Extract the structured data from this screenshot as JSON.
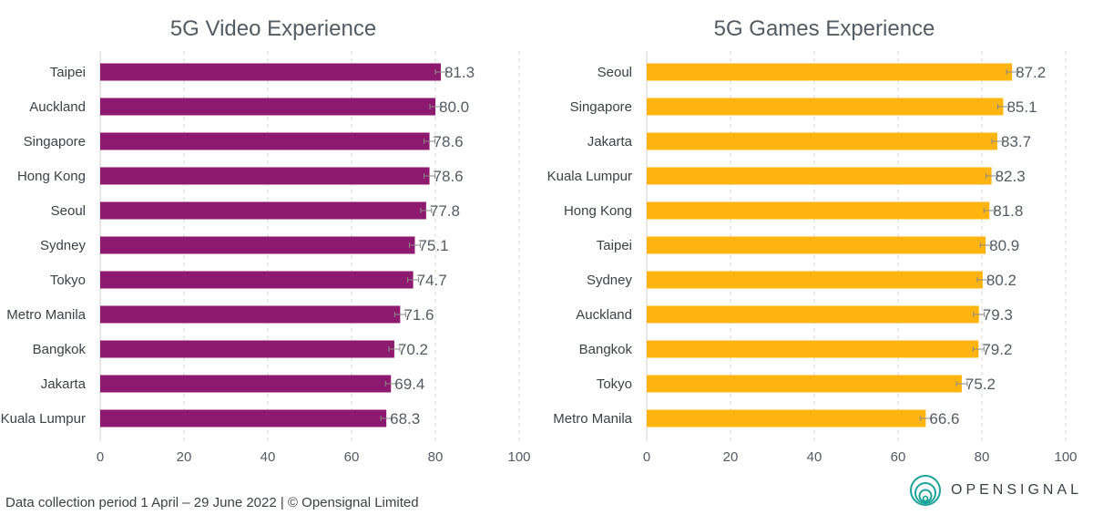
{
  "chart_data": [
    {
      "type": "bar",
      "orientation": "horizontal",
      "title": "5G Video Experience",
      "categories": [
        "Taipei",
        "Auckland",
        "Singapore",
        "Hong Kong",
        "Seoul",
        "Sydney",
        "Tokyo",
        "Metro Manila",
        "Bangkok",
        "Jakarta",
        "Kuala Lumpur"
      ],
      "values": [
        81.3,
        80.0,
        78.6,
        78.6,
        77.8,
        75.1,
        74.7,
        71.6,
        70.2,
        69.4,
        68.3
      ],
      "value_labels": [
        "81.3",
        "80.0",
        "78.6",
        "78.6",
        "77.8",
        "75.1",
        "74.7",
        "71.6",
        "70.2",
        "69.4",
        "68.3"
      ],
      "error_bars": true,
      "xlim": [
        0,
        100
      ],
      "xticks": [
        "0",
        "20",
        "40",
        "60",
        "80",
        "100"
      ],
      "grid": "vertical-dashed",
      "color": "#8e1a6f"
    },
    {
      "type": "bar",
      "orientation": "horizontal",
      "title": "5G Games Experience",
      "categories": [
        "Seoul",
        "Singapore",
        "Jakarta",
        "Kuala Lumpur",
        "Hong Kong",
        "Taipei",
        "Sydney",
        "Auckland",
        "Bangkok",
        "Tokyo",
        "Metro Manila"
      ],
      "values": [
        87.2,
        85.1,
        83.7,
        82.3,
        81.8,
        80.9,
        80.2,
        79.3,
        79.2,
        75.2,
        66.6
      ],
      "value_labels": [
        "87.2",
        "85.1",
        "83.7",
        "82.3",
        "81.8",
        "80.9",
        "80.2",
        "79.3",
        "79.2",
        "75.2",
        "66.6"
      ],
      "error_bars": true,
      "xlim": [
        0,
        100
      ],
      "xticks": [
        "0",
        "20",
        "40",
        "60",
        "80",
        "100"
      ],
      "grid": "vertical-dashed",
      "color": "#ffb40f"
    }
  ],
  "footer": {
    "text": "Data collection period 1 April – 29 June 2022  |  © Opensignal Limited"
  },
  "brand": {
    "name": "OPENSIGNAL",
    "icon": "opensignal-logo-icon",
    "color": "#1aa39a"
  }
}
